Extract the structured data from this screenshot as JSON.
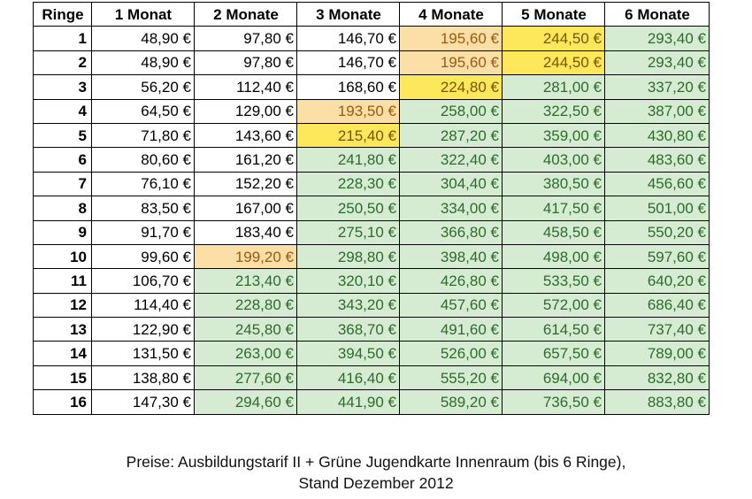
{
  "table": {
    "headers": [
      "Ringe",
      "1 Monat",
      "2 Monate",
      "3 Monate",
      "4 Monate",
      "5 Monate",
      "6 Monate"
    ],
    "rows": [
      {
        "ring": "1",
        "cells": [
          "48,90 €",
          "97,80 €",
          "146,70 €",
          "195,60 €",
          "244,50 €",
          "293,40 €"
        ],
        "shade": [
          "w",
          "w",
          "w",
          "o",
          "y",
          "g"
        ]
      },
      {
        "ring": "2",
        "cells": [
          "48,90 €",
          "97,80 €",
          "146,70 €",
          "195,60 €",
          "244,50 €",
          "293,40 €"
        ],
        "shade": [
          "w",
          "w",
          "w",
          "o",
          "y",
          "g"
        ]
      },
      {
        "ring": "3",
        "cells": [
          "56,20 €",
          "112,40 €",
          "168,60 €",
          "224,80 €",
          "281,00 €",
          "337,20 €"
        ],
        "shade": [
          "w",
          "w",
          "w",
          "y",
          "g",
          "g"
        ]
      },
      {
        "ring": "4",
        "cells": [
          "64,50 €",
          "129,00 €",
          "193,50 €",
          "258,00 €",
          "322,50 €",
          "387,00 €"
        ],
        "shade": [
          "w",
          "w",
          "o",
          "g",
          "g",
          "g"
        ]
      },
      {
        "ring": "5",
        "cells": [
          "71,80 €",
          "143,60 €",
          "215,40 €",
          "287,20 €",
          "359,00 €",
          "430,80 €"
        ],
        "shade": [
          "w",
          "w",
          "y",
          "g",
          "g",
          "g"
        ]
      },
      {
        "ring": "6",
        "cells": [
          "80,60 €",
          "161,20 €",
          "241,80 €",
          "322,40 €",
          "403,00 €",
          "483,60 €"
        ],
        "shade": [
          "w",
          "w",
          "g",
          "g",
          "g",
          "g"
        ]
      },
      {
        "ring": "7",
        "cells": [
          "76,10 €",
          "152,20 €",
          "228,30 €",
          "304,40 €",
          "380,50 €",
          "456,60 €"
        ],
        "shade": [
          "w",
          "w",
          "g",
          "g",
          "g",
          "g"
        ]
      },
      {
        "ring": "8",
        "cells": [
          "83,50 €",
          "167,00 €",
          "250,50 €",
          "334,00 €",
          "417,50 €",
          "501,00 €"
        ],
        "shade": [
          "w",
          "w",
          "g",
          "g",
          "g",
          "g"
        ]
      },
      {
        "ring": "9",
        "cells": [
          "91,70 €",
          "183,40 €",
          "275,10 €",
          "366,80 €",
          "458,50 €",
          "550,20 €"
        ],
        "shade": [
          "w",
          "w",
          "g",
          "g",
          "g",
          "g"
        ]
      },
      {
        "ring": "10",
        "cells": [
          "99,60 €",
          "199,20 €",
          "298,80 €",
          "398,40 €",
          "498,00 €",
          "597,60 €"
        ],
        "shade": [
          "w",
          "o",
          "g",
          "g",
          "g",
          "g"
        ]
      },
      {
        "ring": "11",
        "cells": [
          "106,70 €",
          "213,40 €",
          "320,10 €",
          "426,80 €",
          "533,50 €",
          "640,20 €"
        ],
        "shade": [
          "w",
          "g",
          "g",
          "g",
          "g",
          "g"
        ]
      },
      {
        "ring": "12",
        "cells": [
          "114,40 €",
          "228,80 €",
          "343,20 €",
          "457,60 €",
          "572,00 €",
          "686,40 €"
        ],
        "shade": [
          "w",
          "g",
          "g",
          "g",
          "g",
          "g"
        ]
      },
      {
        "ring": "13",
        "cells": [
          "122,90 €",
          "245,80 €",
          "368,70 €",
          "491,60 €",
          "614,50 €",
          "737,40 €"
        ],
        "shade": [
          "w",
          "g",
          "g",
          "g",
          "g",
          "g"
        ]
      },
      {
        "ring": "14",
        "cells": [
          "131,50 €",
          "263,00 €",
          "394,50 €",
          "526,00 €",
          "657,50 €",
          "789,00 €"
        ],
        "shade": [
          "w",
          "g",
          "g",
          "g",
          "g",
          "g"
        ]
      },
      {
        "ring": "15",
        "cells": [
          "138,80 €",
          "277,60 €",
          "416,40 €",
          "555,20 €",
          "694,00 €",
          "832,80 €"
        ],
        "shade": [
          "w",
          "g",
          "g",
          "g",
          "g",
          "g"
        ]
      },
      {
        "ring": "16",
        "cells": [
          "147,30 €",
          "294,60 €",
          "441,90 €",
          "589,20 €",
          "736,50 €",
          "883,80 €"
        ],
        "shade": [
          "w",
          "g",
          "g",
          "g",
          "g",
          "g"
        ]
      }
    ]
  },
  "colors": {
    "green_fill": "#d5ecd3",
    "green_text": "#2f6a2d",
    "orange_fill": "#fbdfa6",
    "yellow_fill": "#fde75a"
  },
  "caption": {
    "line1": "Preise: Ausbildungstarif II + Grüne Jugendkarte Innenraum (bis 6 Ringe),",
    "line2": "Stand Dezember 2012"
  }
}
